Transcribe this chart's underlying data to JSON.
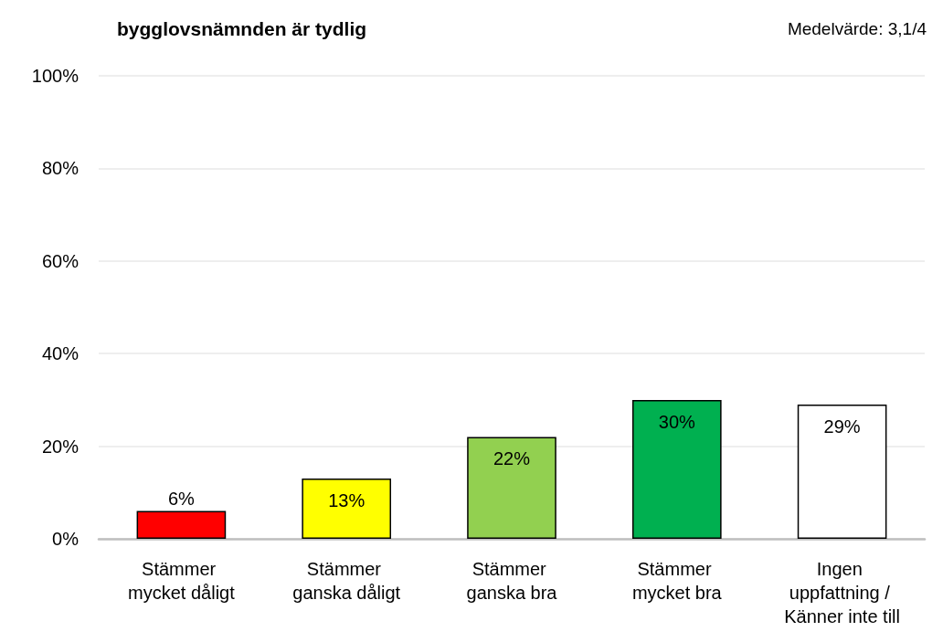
{
  "chart_data": {
    "type": "bar",
    "title": "bygglovsnämnden är tydlig",
    "annotations": [
      "Medelvärde: 3,1/4"
    ],
    "categories": [
      "Stämmer mycket dåligt",
      "Stämmer ganska dåligt",
      "Stämmer ganska bra",
      "Stämmer mycket bra",
      "Ingen uppfattning / Känner inte till"
    ],
    "values": [
      6,
      13,
      22,
      30,
      29
    ],
    "colors": [
      "#ff0000",
      "#ffff00",
      "#92d050",
      "#00b050",
      "#ffffff"
    ],
    "ylim": [
      0,
      100
    ],
    "yticks": [
      {
        "value": 0,
        "label": "0%"
      },
      {
        "value": 20,
        "label": "20%"
      },
      {
        "value": 40,
        "label": "40%"
      },
      {
        "value": 60,
        "label": "60%"
      },
      {
        "value": 80,
        "label": "80%"
      },
      {
        "value": 100,
        "label": "100%"
      }
    ],
    "value_labels": [
      "6%",
      "13%",
      "22%",
      "30%",
      "29%"
    ],
    "grid": "y"
  }
}
